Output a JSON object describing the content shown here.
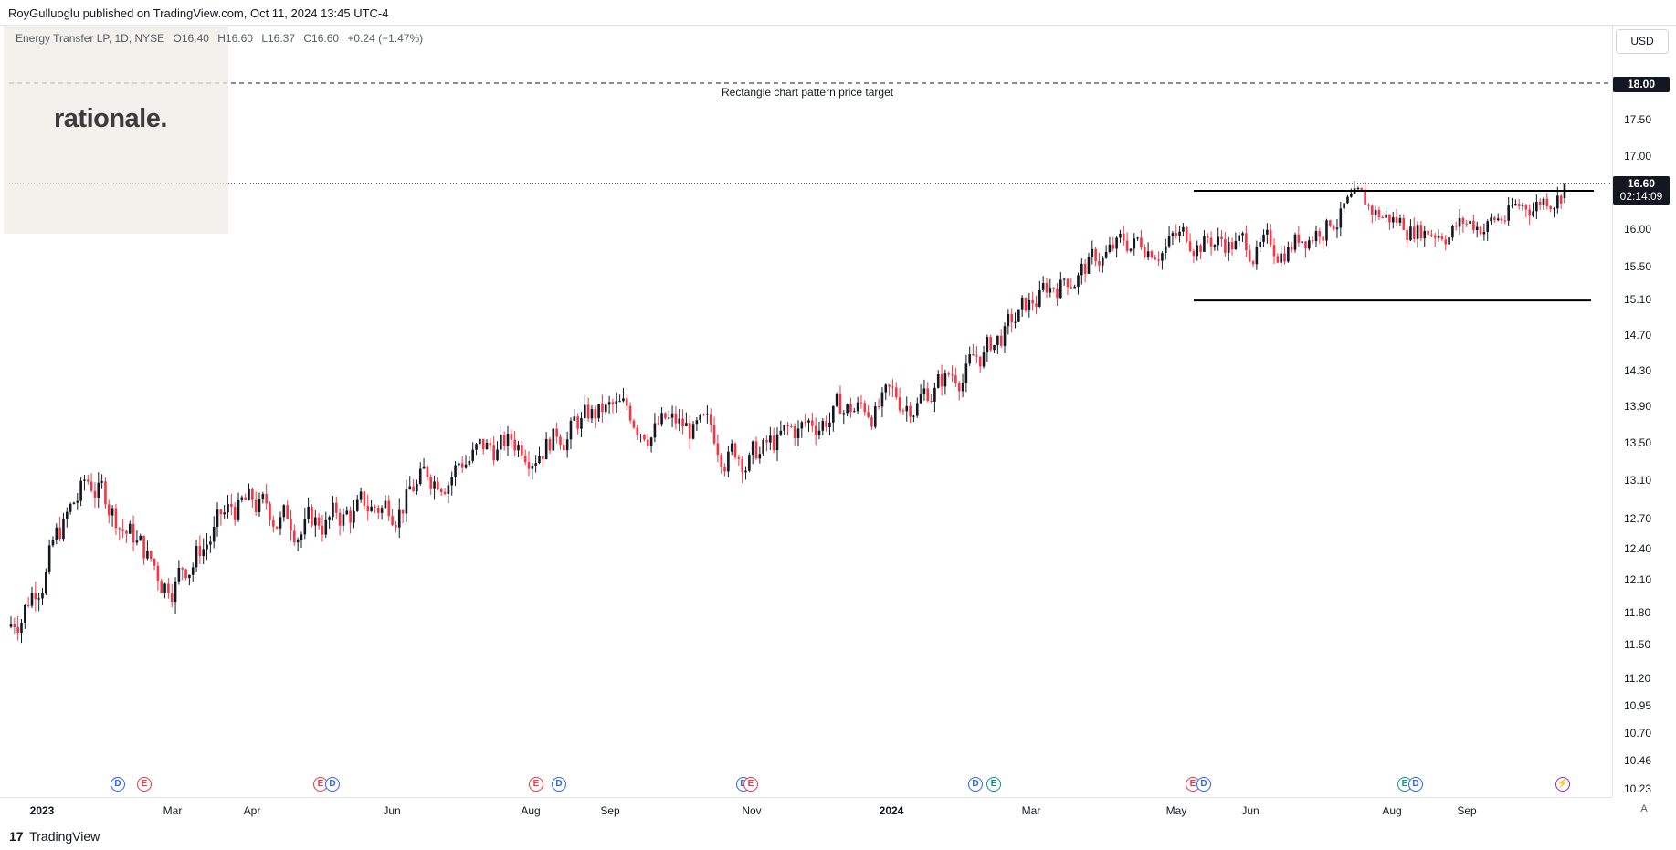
{
  "header": {
    "publisher_text": "RoyGulluoglu published on TradingView.com, Oct 11, 2024 13:45 UTC-4"
  },
  "legend": {
    "symbol": "Energy Transfer LP, 1D, NYSE",
    "open": "O16.40",
    "high": "H16.60",
    "low": "L16.37",
    "close": "C16.60",
    "change": "+0.24 (+1.47%)"
  },
  "watermark": {
    "brand": "rationale."
  },
  "currency": "USD",
  "price_axis": {
    "ticks": [
      "17.50",
      "17.00",
      "16.00",
      "15.50",
      "15.10",
      "14.70",
      "14.30",
      "13.90",
      "13.50",
      "13.10",
      "12.70",
      "12.40",
      "12.10",
      "11.80",
      "11.50",
      "11.20",
      "10.95",
      "10.70",
      "10.46",
      "10.23"
    ],
    "target_badge": "18.00",
    "last_price_badge": "16.60",
    "countdown_badge": "02:14:09"
  },
  "annotation": {
    "target_label": "Rectangle chart pattern price target",
    "target_price": 18.0,
    "resistance_price": 16.5,
    "support_price": 15.1
  },
  "time_axis": {
    "labels": [
      {
        "text": "2023",
        "year": true
      },
      {
        "text": "Mar",
        "year": false
      },
      {
        "text": "Apr",
        "year": false
      },
      {
        "text": "Jun",
        "year": false
      },
      {
        "text": "Aug",
        "year": false
      },
      {
        "text": "Sep",
        "year": false
      },
      {
        "text": "Nov",
        "year": false
      },
      {
        "text": "2024",
        "year": true
      },
      {
        "text": "Mar",
        "year": false
      },
      {
        "text": "May",
        "year": false
      },
      {
        "text": "Jun",
        "year": false
      },
      {
        "text": "Aug",
        "year": false
      },
      {
        "text": "Sep",
        "year": false
      }
    ],
    "auto_label": "A"
  },
  "events": [
    {
      "type": "dividend",
      "letter": "D"
    },
    {
      "type": "earnings",
      "letter": "E"
    },
    {
      "type": "earnings",
      "letter": "E"
    },
    {
      "type": "dividend",
      "letter": "D"
    },
    {
      "type": "earnings",
      "letter": "E"
    },
    {
      "type": "dividend",
      "letter": "D"
    },
    {
      "type": "dividend",
      "letter": "D"
    },
    {
      "type": "earnings",
      "letter": "E"
    },
    {
      "type": "dividend",
      "letter": "D"
    },
    {
      "type": "earnings-positive",
      "letter": "E"
    },
    {
      "type": "earnings",
      "letter": "E"
    },
    {
      "type": "dividend",
      "letter": "D"
    },
    {
      "type": "earnings-positive",
      "letter": "E"
    },
    {
      "type": "dividend",
      "letter": "D"
    },
    {
      "type": "split",
      "letter": "⚡"
    }
  ],
  "footer": {
    "logo_text": "TradingView",
    "logo_mark": "17"
  },
  "colors": {
    "up": "#131722",
    "down": "#f23645",
    "grid": "#f0f3fa",
    "text": "#131722"
  },
  "chart_data": {
    "type": "candlestick",
    "symbol": "Energy Transfer LP",
    "interval": "1D",
    "exchange": "NYSE",
    "x_range": [
      "2023-01",
      "2024-10-11"
    ],
    "ylim": [
      10.23,
      18.4
    ],
    "scale": "log",
    "last": {
      "open": 16.4,
      "high": 16.6,
      "low": 16.37,
      "close": 16.6
    },
    "series": [
      {
        "name": "close_approx",
        "x": [
          "2023-01",
          "2023-02",
          "2023-03",
          "2023-04",
          "2023-05",
          "2023-06",
          "2023-07",
          "2023-08",
          "2023-09",
          "2023-10",
          "2023-11",
          "2023-12",
          "2024-01",
          "2024-02",
          "2024-03",
          "2024-04",
          "2024-05",
          "2024-06",
          "2024-07",
          "2024-08",
          "2024-09",
          "2024-10"
        ],
        "values": [
          11.7,
          13.1,
          12.0,
          12.8,
          12.6,
          12.8,
          13.3,
          13.5,
          13.8,
          13.6,
          13.3,
          13.8,
          13.9,
          14.4,
          15.3,
          15.8,
          15.9,
          15.7,
          16.3,
          16.0,
          16.1,
          16.6
        ]
      }
    ]
  }
}
